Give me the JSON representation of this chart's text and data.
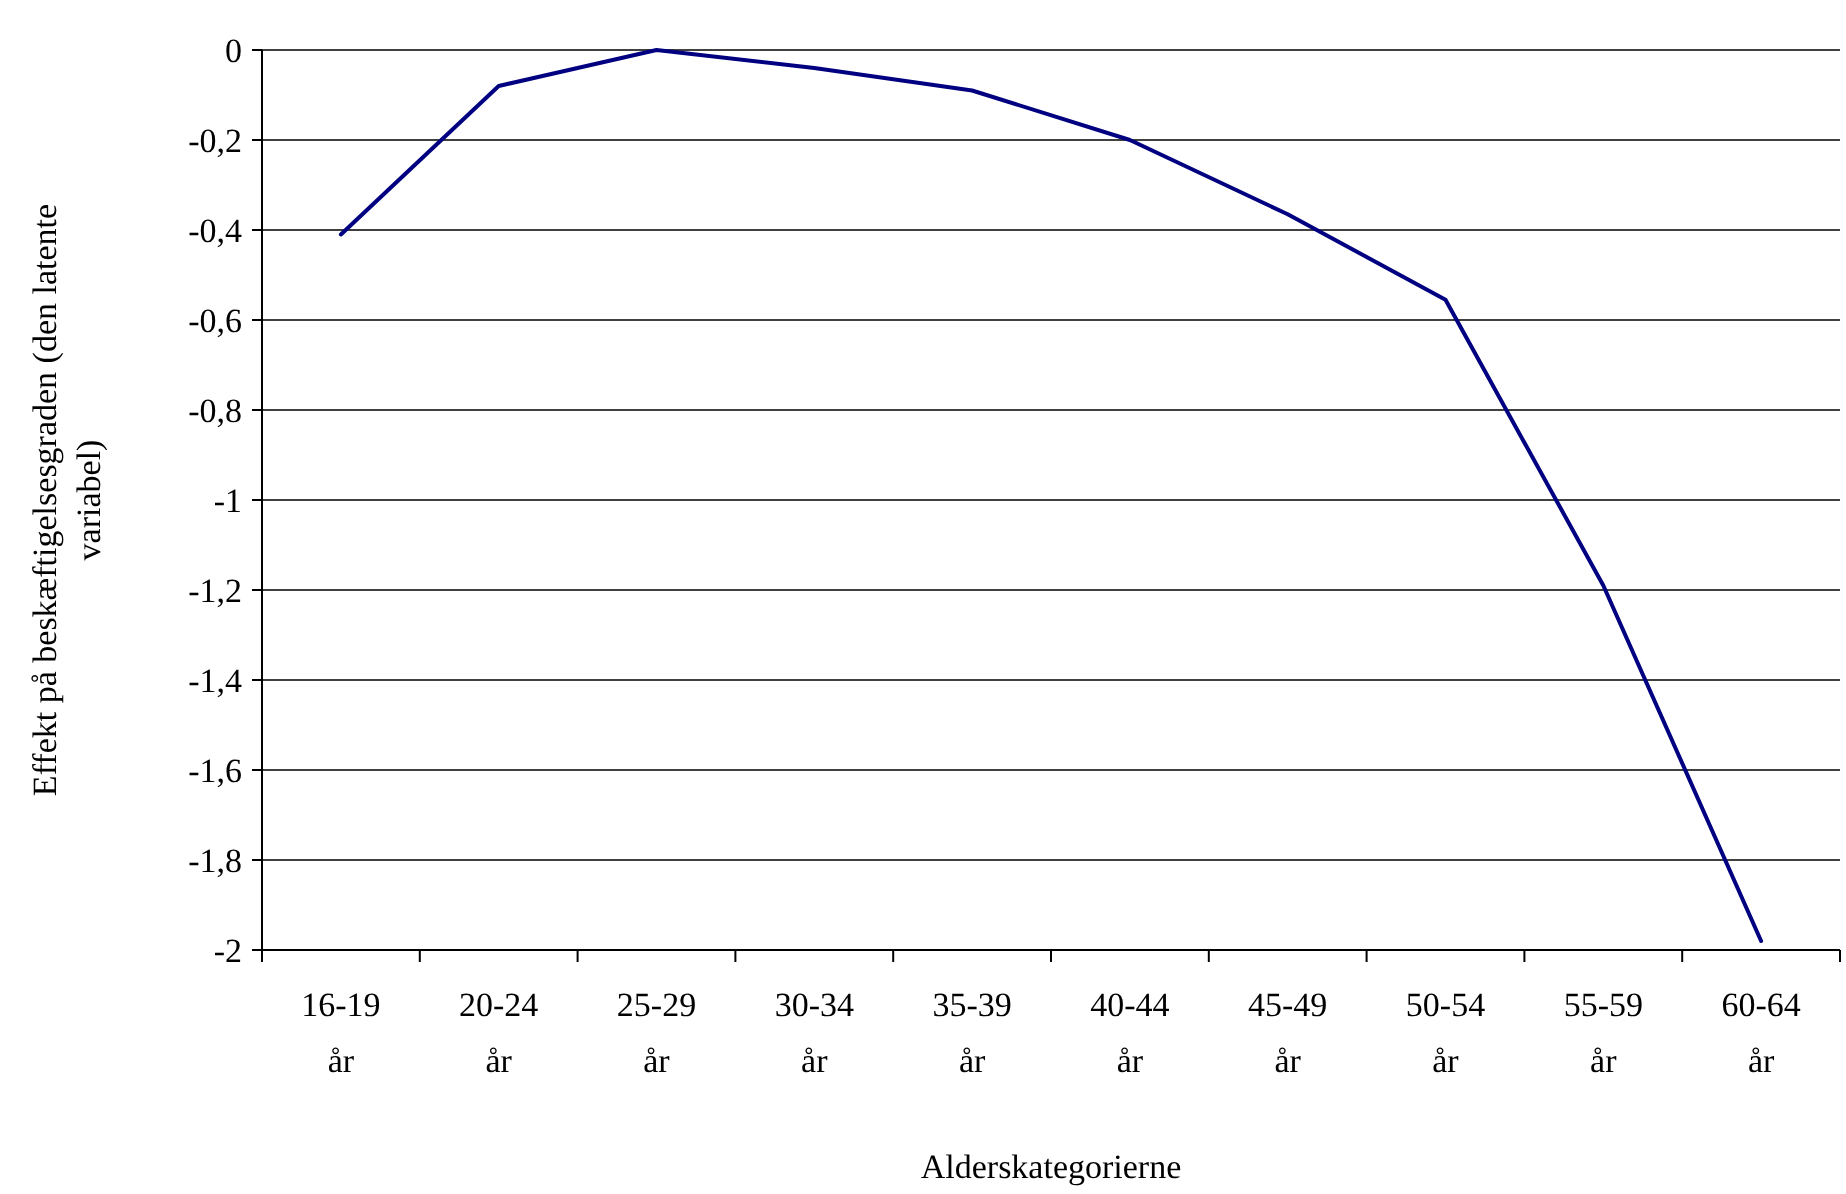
{
  "chart_data": {
    "type": "line",
    "xlabel": "Alderskategorierne",
    "ylabel": "Effekt på beskæftigelsesgraden (den latente variabel)",
    "categories": [
      "16-19 år",
      "20-24 år",
      "25-29 år",
      "30-34 år",
      "35-39 år",
      "40-44 år",
      "45-49 år",
      "50-54 år",
      "55-59 år",
      "60-64 år"
    ],
    "series": [
      {
        "color": "#000080",
        "values": [
          -0.41,
          -0.08,
          0,
          -0.04,
          -0.09,
          -0.2,
          -0.365,
          -0.555,
          -1.19,
          -1.98
        ]
      }
    ],
    "ylim": [
      -2,
      0
    ],
    "yticks": [
      {
        "value": -2,
        "label": "-2"
      },
      {
        "value": -1.8,
        "label": "-1,8"
      },
      {
        "value": -1.6,
        "label": "-1,6"
      },
      {
        "value": -1.4,
        "label": "-1,4"
      },
      {
        "value": -1.2,
        "label": "-1,2"
      },
      {
        "value": -1,
        "label": "-1"
      },
      {
        "value": -0.8,
        "label": "-0,8"
      },
      {
        "value": -0.6,
        "label": "-0,6"
      },
      {
        "value": -0.4,
        "label": "-0,4"
      },
      {
        "value": -0.2,
        "label": "-0,2"
      },
      {
        "value": 0,
        "label": "0"
      }
    ],
    "grid": "y",
    "marker": "none",
    "line_style": "solid"
  }
}
